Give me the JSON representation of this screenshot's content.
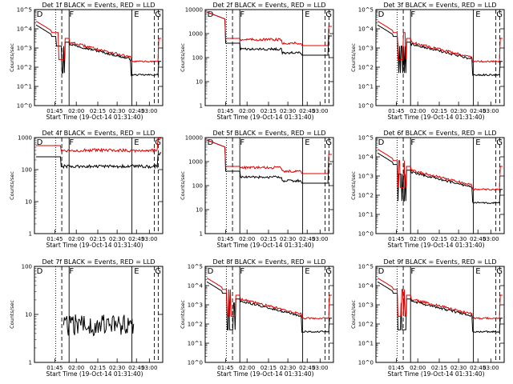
{
  "chart_data": [
    {
      "type": "line",
      "title": "Det 1f BLACK = Events, RED = LLD",
      "xlabel": "Start Time (19-Oct-14 01:31:40)",
      "ylabel": "Counts/sec",
      "yscale": "log",
      "ylim": [
        1,
        100000
      ],
      "ytick_labels": [
        "10^0",
        "10^1",
        "10^2",
        "10^3",
        "10^4",
        "10^5"
      ],
      "xtick_labels": [
        "01:45",
        "02:00",
        "02:15",
        "02:30",
        "02:45",
        "03:00"
      ],
      "markers": [
        "D",
        "F",
        "E",
        "G"
      ],
      "profile": "spiky",
      "series": [
        {
          "name": "Events",
          "color": "#000000"
        },
        {
          "name": "LLD",
          "color": "#e00000"
        }
      ]
    },
    {
      "type": "line",
      "title": "Det 2f BLACK = Events, RED = LLD",
      "xlabel": "Start Time (19-Oct-14 01:31:40)",
      "ylabel": "Counts/sec",
      "yscale": "log",
      "ylim": [
        1,
        10000
      ],
      "ytick_labels": [
        "1",
        "10",
        "100",
        "1000",
        "10000"
      ],
      "xtick_labels": [
        "01:45",
        "02:00",
        "02:15",
        "02:30",
        "02:45",
        "03:00"
      ],
      "markers": [
        "D",
        "F",
        "E",
        "G"
      ],
      "profile": "smooth",
      "series": [
        {
          "name": "Events",
          "color": "#000000"
        },
        {
          "name": "LLD",
          "color": "#e00000"
        }
      ]
    },
    {
      "type": "line",
      "title": "Det 3f BLACK = Events, RED = LLD",
      "xlabel": "Start Time (19-Oct-14 01:31:40)",
      "ylabel": "Counts/sec",
      "yscale": "log",
      "ylim": [
        1,
        100000
      ],
      "ytick_labels": [
        "10^0",
        "10^1",
        "10^2",
        "10^3",
        "10^4",
        "10^5"
      ],
      "xtick_labels": [
        "01:45",
        "02:00",
        "02:15",
        "02:30",
        "02:45",
        "03:00"
      ],
      "markers": [
        "D",
        "F",
        "E",
        "G"
      ],
      "profile": "spiky",
      "series": [
        {
          "name": "Events",
          "color": "#000000"
        },
        {
          "name": "LLD",
          "color": "#e00000"
        }
      ]
    },
    {
      "type": "line",
      "title": "Det 4f BLACK = Events, RED = LLD",
      "xlabel": "Start Time (19-Oct-14 01:31:40)",
      "ylabel": "Counts/sec",
      "yscale": "log",
      "ylim": [
        1,
        1000
      ],
      "ytick_labels": [
        "1",
        "10",
        "100",
        "1000"
      ],
      "xtick_labels": [
        "01:45",
        "02:00",
        "02:15",
        "02:30",
        "02:45",
        "03:00"
      ],
      "markers": [
        "D",
        "F",
        "E",
        "G"
      ],
      "profile": "flat",
      "series": [
        {
          "name": "Events",
          "color": "#000000"
        },
        {
          "name": "LLD",
          "color": "#e00000"
        }
      ]
    },
    {
      "type": "line",
      "title": "Det 5f BLACK = Events, RED = LLD",
      "xlabel": "Start Time (19-Oct-14 01:31:40)",
      "ylabel": "Counts/sec",
      "yscale": "log",
      "ylim": [
        1,
        10000
      ],
      "ytick_labels": [
        "1",
        "10",
        "100",
        "1000",
        "10000"
      ],
      "xtick_labels": [
        "01:45",
        "02:00",
        "02:15",
        "02:30",
        "02:45",
        "03:00"
      ],
      "markers": [
        "D",
        "F",
        "E",
        "G"
      ],
      "profile": "smooth",
      "series": [
        {
          "name": "Events",
          "color": "#000000"
        },
        {
          "name": "LLD",
          "color": "#e00000"
        }
      ]
    },
    {
      "type": "line",
      "title": "Det 6f BLACK = Events, RED = LLD",
      "xlabel": "Start Time (19-Oct-14 01:31:40)",
      "ylabel": "Counts/sec",
      "yscale": "log",
      "ylim": [
        1,
        100000
      ],
      "ytick_labels": [
        "10^0",
        "10^1",
        "10^2",
        "10^3",
        "10^4",
        "10^5"
      ],
      "xtick_labels": [
        "01:45",
        "02:00",
        "02:15",
        "02:30",
        "02:45",
        "03:00"
      ],
      "markers": [
        "D",
        "F",
        "E",
        "G"
      ],
      "profile": "spiky",
      "series": [
        {
          "name": "Events",
          "color": "#000000"
        },
        {
          "name": "LLD",
          "color": "#e00000"
        }
      ]
    },
    {
      "type": "line",
      "title": "Det 7f BLACK = Events, RED = LLD",
      "xlabel": "Start Time (19-Oct-14 01:31:40)",
      "ylabel": "Counts/sec",
      "yscale": "log",
      "ylim": [
        1,
        100
      ],
      "ytick_labels": [
        "1",
        "10",
        "100"
      ],
      "xtick_labels": [
        "01:45",
        "02:00",
        "02:15",
        "02:30",
        "02:45",
        "03:00"
      ],
      "markers": [
        "D",
        "F",
        "E",
        "G"
      ],
      "profile": "noise",
      "series": [
        {
          "name": "Events",
          "color": "#000000"
        },
        {
          "name": "LLD",
          "color": "#e00000"
        }
      ]
    },
    {
      "type": "line",
      "title": "Det 8f BLACK = Events, RED = LLD",
      "xlabel": "Start Time (19-Oct-14 01:31:40)",
      "ylabel": "Counts/sec",
      "yscale": "log",
      "ylim": [
        1,
        100000
      ],
      "ytick_labels": [
        "10^0",
        "10^1",
        "10^2",
        "10^3",
        "10^4",
        "10^5"
      ],
      "xtick_labels": [
        "01:45",
        "02:00",
        "02:15",
        "02:30",
        "02:45",
        "03:00"
      ],
      "markers": [
        "D",
        "F",
        "E",
        "G"
      ],
      "profile": "spiky",
      "series": [
        {
          "name": "Events",
          "color": "#000000"
        },
        {
          "name": "LLD",
          "color": "#e00000"
        }
      ]
    },
    {
      "type": "line",
      "title": "Det 9f BLACK = Events, RED = LLD",
      "xlabel": "Start Time (19-Oct-14 01:31:40)",
      "ylabel": "Counts/sec",
      "yscale": "log",
      "ylim": [
        1,
        100000
      ],
      "ytick_labels": [
        "10^0",
        "10^1",
        "10^2",
        "10^3",
        "10^4",
        "10^5"
      ],
      "xtick_labels": [
        "01:45",
        "02:00",
        "02:15",
        "02:30",
        "02:45",
        "03:00"
      ],
      "markers": [
        "D",
        "F",
        "E",
        "G"
      ],
      "profile": "spiky",
      "series": [
        {
          "name": "Events",
          "color": "#000000"
        },
        {
          "name": "LLD",
          "color": "#e00000"
        }
      ]
    }
  ]
}
